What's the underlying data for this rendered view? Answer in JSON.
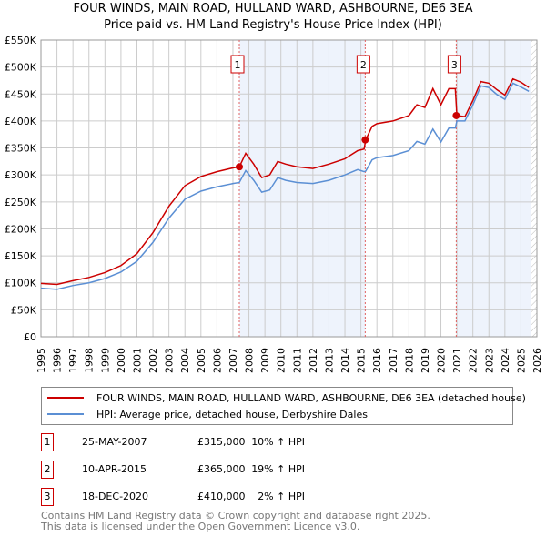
{
  "chart_data": {
    "type": "line",
    "title": "FOUR WINDS, MAIN ROAD, HULLAND WARD, ASHBOURNE, DE6 3EA",
    "subtitle": "Price paid vs. HM Land Registry's House Price Index (HPI)",
    "xlim": [
      1995,
      2026
    ],
    "ylim": [
      0,
      550000
    ],
    "yticks": [
      0,
      50000,
      100000,
      150000,
      200000,
      250000,
      300000,
      350000,
      400000,
      450000,
      500000,
      550000
    ],
    "ytick_labels": [
      "£0",
      "£50K",
      "£100K",
      "£150K",
      "£200K",
      "£250K",
      "£300K",
      "£350K",
      "£400K",
      "£450K",
      "£500K",
      "£550K"
    ],
    "xtick_labels": [
      "1995",
      "1996",
      "1997",
      "1998",
      "1999",
      "2000",
      "2001",
      "2002",
      "2003",
      "2004",
      "2005",
      "2006",
      "2007",
      "2008",
      "2009",
      "2010",
      "2011",
      "2012",
      "2013",
      "2014",
      "2015",
      "2016",
      "2017",
      "2018",
      "2019",
      "2020",
      "2021",
      "2022",
      "2023",
      "2024",
      "2025",
      "2026"
    ],
    "grid": true,
    "series": [
      {
        "name": "FOUR WINDS, MAIN ROAD, HULLAND WARD, ASHBOURNE, DE6 3EA (detached house)",
        "color": "#cc0000",
        "x": [
          1995,
          1996,
          1997,
          1998,
          1999,
          2000,
          2001,
          2002,
          2003,
          2004,
          2005,
          2006,
          2007,
          2007.4,
          2007.8,
          2008.3,
          2008.8,
          2009.3,
          2009.8,
          2010.3,
          2011,
          2012,
          2013,
          2014,
          2014.8,
          2015.2,
          2015.3,
          2015.7,
          2016,
          2017,
          2018,
          2018.5,
          2019,
          2019.5,
          2020,
          2020.5,
          2020.9,
          2021,
          2021.5,
          2022,
          2022.5,
          2023,
          2023.5,
          2024,
          2024.5,
          2025,
          2025.5
        ],
        "y": [
          99000,
          97000,
          104000,
          110000,
          119000,
          132000,
          154000,
          193000,
          242000,
          280000,
          297000,
          306000,
          313000,
          315000,
          340000,
          320000,
          295000,
          300000,
          325000,
          320000,
          315000,
          312000,
          320000,
          330000,
          345000,
          348000,
          365000,
          390000,
          395000,
          400000,
          410000,
          430000,
          425000,
          460000,
          430000,
          460000,
          460000,
          410000,
          408000,
          438000,
          473000,
          470000,
          458000,
          448000,
          478000,
          472000,
          462000
        ]
      },
      {
        "name": "HPI: Average price, detached house, Derbyshire Dales",
        "color": "#5b8fd4",
        "x": [
          1995,
          1996,
          1997,
          1998,
          1999,
          2000,
          2001,
          2002,
          2003,
          2004,
          2005,
          2006,
          2007,
          2007.4,
          2007.8,
          2008.3,
          2008.8,
          2009.3,
          2009.8,
          2010.3,
          2011,
          2012,
          2013,
          2014,
          2014.8,
          2015.2,
          2015.3,
          2015.7,
          2016,
          2017,
          2018,
          2018.5,
          2019,
          2019.5,
          2020,
          2020.5,
          2020.9,
          2021,
          2021.5,
          2022,
          2022.5,
          2023,
          2023.5,
          2024,
          2024.5,
          2025,
          2025.5
        ],
        "y": [
          90000,
          88000,
          95000,
          100000,
          108000,
          120000,
          140000,
          175000,
          220000,
          255000,
          270000,
          278000,
          284000,
          286000,
          308000,
          290000,
          268000,
          272000,
          295000,
          290000,
          286000,
          284000,
          290000,
          300000,
          310000,
          306000,
          307000,
          328000,
          332000,
          336000,
          345000,
          362000,
          357000,
          385000,
          361000,
          387000,
          387000,
          400000,
          400000,
          430000,
          465000,
          462000,
          449000,
          440000,
          470000,
          463000,
          455000
        ]
      }
    ],
    "sales": [
      {
        "label": "1",
        "x": 2007.4,
        "y": 315000,
        "date": "25-MAY-2007",
        "price": "£315,000",
        "hpi": "10% ↑ HPI"
      },
      {
        "label": "2",
        "x": 2015.27,
        "y": 365000,
        "date": "10-APR-2015",
        "price": "£365,000",
        "hpi": "19% ↑ HPI"
      },
      {
        "label": "3",
        "x": 2020.96,
        "y": 410000,
        "date": "18-DEC-2020",
        "price": "£410,000",
        "hpi": "2% ↑ HPI"
      }
    ],
    "shaded_ranges": [
      [
        2007.4,
        2015.27
      ],
      [
        2020.96,
        2025.6
      ]
    ],
    "hatched_from": 2025.6,
    "legend_position": "below"
  },
  "footer": [
    "Contains HM Land Registry data © Crown copyright and database right 2025.",
    "This data is licensed under the Open Government Licence v3.0."
  ]
}
